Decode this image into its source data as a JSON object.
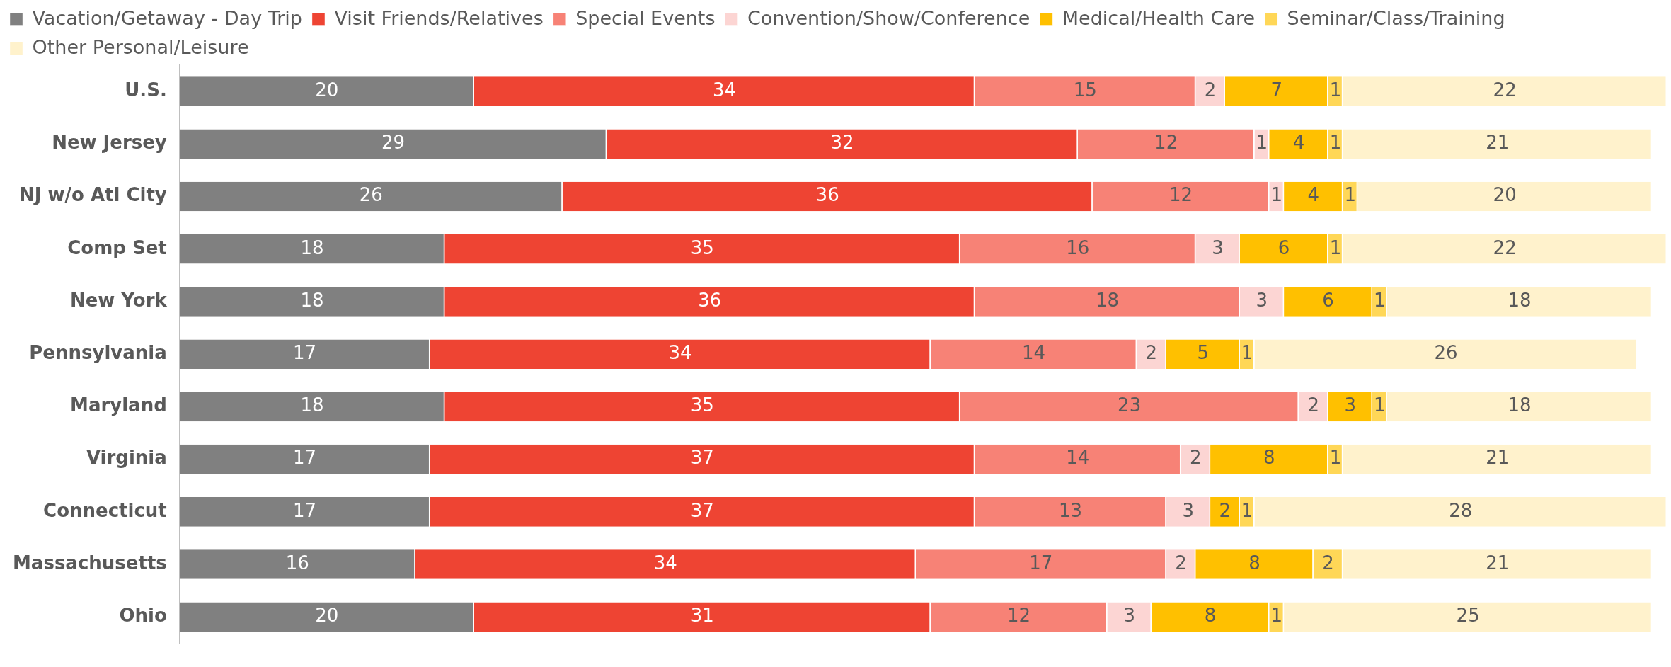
{
  "chart_data": {
    "type": "bar",
    "orientation": "horizontal",
    "stacked": true,
    "data_labels": true,
    "legend": "top",
    "tick_labels": "y",
    "categories": [
      "U.S.",
      "New Jersey",
      "NJ w/o Atl City",
      "Comp Set",
      "New York",
      "Pennsylvania",
      "Maryland",
      "Virginia",
      "Connecticut",
      "Massachusetts",
      "Ohio"
    ],
    "series": [
      {
        "name": "Vacation/Getaway - Day Trip",
        "color": "#808080",
        "values": [
          20,
          29,
          26,
          18,
          18,
          17,
          18,
          17,
          17,
          16,
          20
        ]
      },
      {
        "name": "Visit Friends/Relatives",
        "color": "#ee4433",
        "values": [
          34,
          32,
          36,
          35,
          36,
          34,
          35,
          37,
          37,
          34,
          31
        ]
      },
      {
        "name": "Special Events",
        "color": "#f78276",
        "values": [
          15,
          12,
          12,
          16,
          18,
          14,
          23,
          14,
          13,
          17,
          12
        ]
      },
      {
        "name": "Convention/Show/Conference",
        "color": "#fcd5d3",
        "values": [
          2,
          1,
          1,
          3,
          3,
          2,
          2,
          2,
          3,
          2,
          3
        ]
      },
      {
        "name": "Medical/Health Care",
        "color": "#ffc000",
        "values": [
          7,
          4,
          4,
          6,
          6,
          5,
          3,
          8,
          2,
          8,
          8
        ]
      },
      {
        "name": "Seminar/Class/Training",
        "color": "#ffd757",
        "values": [
          1,
          1,
          1,
          1,
          1,
          1,
          1,
          1,
          1,
          2,
          1
        ]
      },
      {
        "name": "Other Personal/Leisure",
        "color": "#fff2cc",
        "values": [
          22,
          21,
          20,
          22,
          18,
          26,
          18,
          21,
          28,
          21,
          25
        ]
      }
    ]
  }
}
